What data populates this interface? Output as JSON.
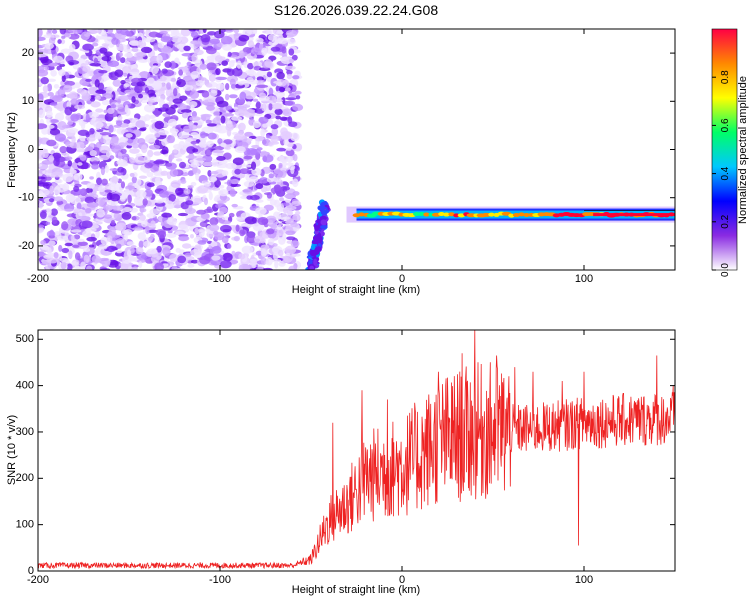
{
  "title": "S126.2026.039.22.24.G08",
  "chart_data": [
    {
      "type": "heatmap",
      "xlabel": "Height of straight line (km)",
      "ylabel": "Frequency (Hz)",
      "xlim": [
        -200,
        150
      ],
      "ylim": [
        -25,
        25
      ],
      "x_ticks": [
        -200,
        -100,
        0,
        100
      ],
      "y_ticks": [
        -20,
        -10,
        0,
        10,
        20
      ],
      "colorbar": {
        "label": "Normalized spectral amplitude",
        "range": [
          0,
          1
        ],
        "ticks": [
          0.0,
          0.2,
          0.4,
          0.6,
          0.8
        ],
        "colormap": [
          "#ffffff",
          "#8a2be2",
          "#0000ff",
          "#00c8ff",
          "#00ff66",
          "#ffff00",
          "#ff8800",
          "#ff0044"
        ]
      },
      "features": {
        "noise_region_x": [
          -200,
          -57
        ],
        "signal_start_x": -25,
        "signal_end_x": 150,
        "signal_freq_hz": [
          -14,
          -13
        ]
      }
    },
    {
      "type": "line",
      "xlabel": "Height of straight line (km)",
      "ylabel": "SNR (10 * v/v)",
      "xlim": [
        -200,
        150
      ],
      "ylim": [
        0,
        520
      ],
      "x_ticks": [
        -200,
        -100,
        0,
        100
      ],
      "y_ticks": [
        0,
        100,
        200,
        300,
        400,
        500
      ],
      "color": "#ee2222",
      "profile": [
        {
          "x": -200,
          "y": 12
        },
        {
          "x": -60,
          "y": 12
        },
        {
          "x": -50,
          "y": 25
        },
        {
          "x": -40,
          "y": 110
        },
        {
          "x": -30,
          "y": 145
        },
        {
          "x": -20,
          "y": 200
        },
        {
          "x": -10,
          "y": 215
        },
        {
          "x": 0,
          "y": 225
        },
        {
          "x": 10,
          "y": 250
        },
        {
          "x": 20,
          "y": 280
        },
        {
          "x": 40,
          "y": 300
        },
        {
          "x": 60,
          "y": 305
        },
        {
          "x": 80,
          "y": 310
        },
        {
          "x": 100,
          "y": 320
        },
        {
          "x": 120,
          "y": 325
        },
        {
          "x": 150,
          "y": 330
        }
      ],
      "peaks": [
        {
          "x": -38,
          "y": 320
        },
        {
          "x": -22,
          "y": 390
        },
        {
          "x": -8,
          "y": 370
        },
        {
          "x": 20,
          "y": 430
        },
        {
          "x": 33,
          "y": 470
        },
        {
          "x": 40,
          "y": 520
        },
        {
          "x": 52,
          "y": 465
        },
        {
          "x": 62,
          "y": 440
        },
        {
          "x": 72,
          "y": 430
        },
        {
          "x": 88,
          "y": 410
        },
        {
          "x": 97,
          "y": 55
        },
        {
          "x": 100,
          "y": 430
        },
        {
          "x": 140,
          "y": 465
        },
        {
          "x": 149,
          "y": 400
        }
      ]
    }
  ]
}
